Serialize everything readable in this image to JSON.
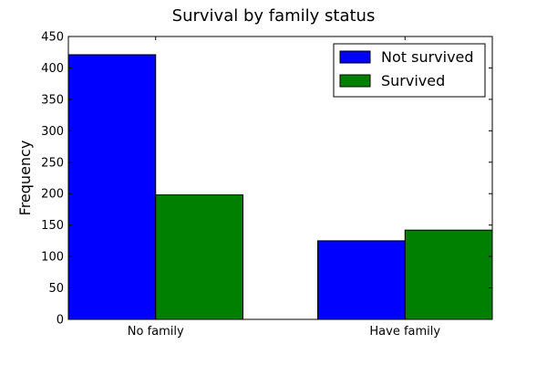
{
  "chart_data": {
    "type": "bar",
    "title": "Survival by family status",
    "xlabel": "",
    "ylabel": "Frequency",
    "categories": [
      "No family",
      "Have family"
    ],
    "series": [
      {
        "name": "Not survived",
        "values": [
          421,
          125
        ],
        "color": "#0000ff"
      },
      {
        "name": "Survived",
        "values": [
          198,
          142
        ],
        "color": "#008000"
      }
    ],
    "ylim": [
      0,
      450
    ],
    "yticks": [
      0,
      50,
      100,
      150,
      200,
      250,
      300,
      350,
      400,
      450
    ],
    "grid": false,
    "legend_position": "top-right"
  }
}
